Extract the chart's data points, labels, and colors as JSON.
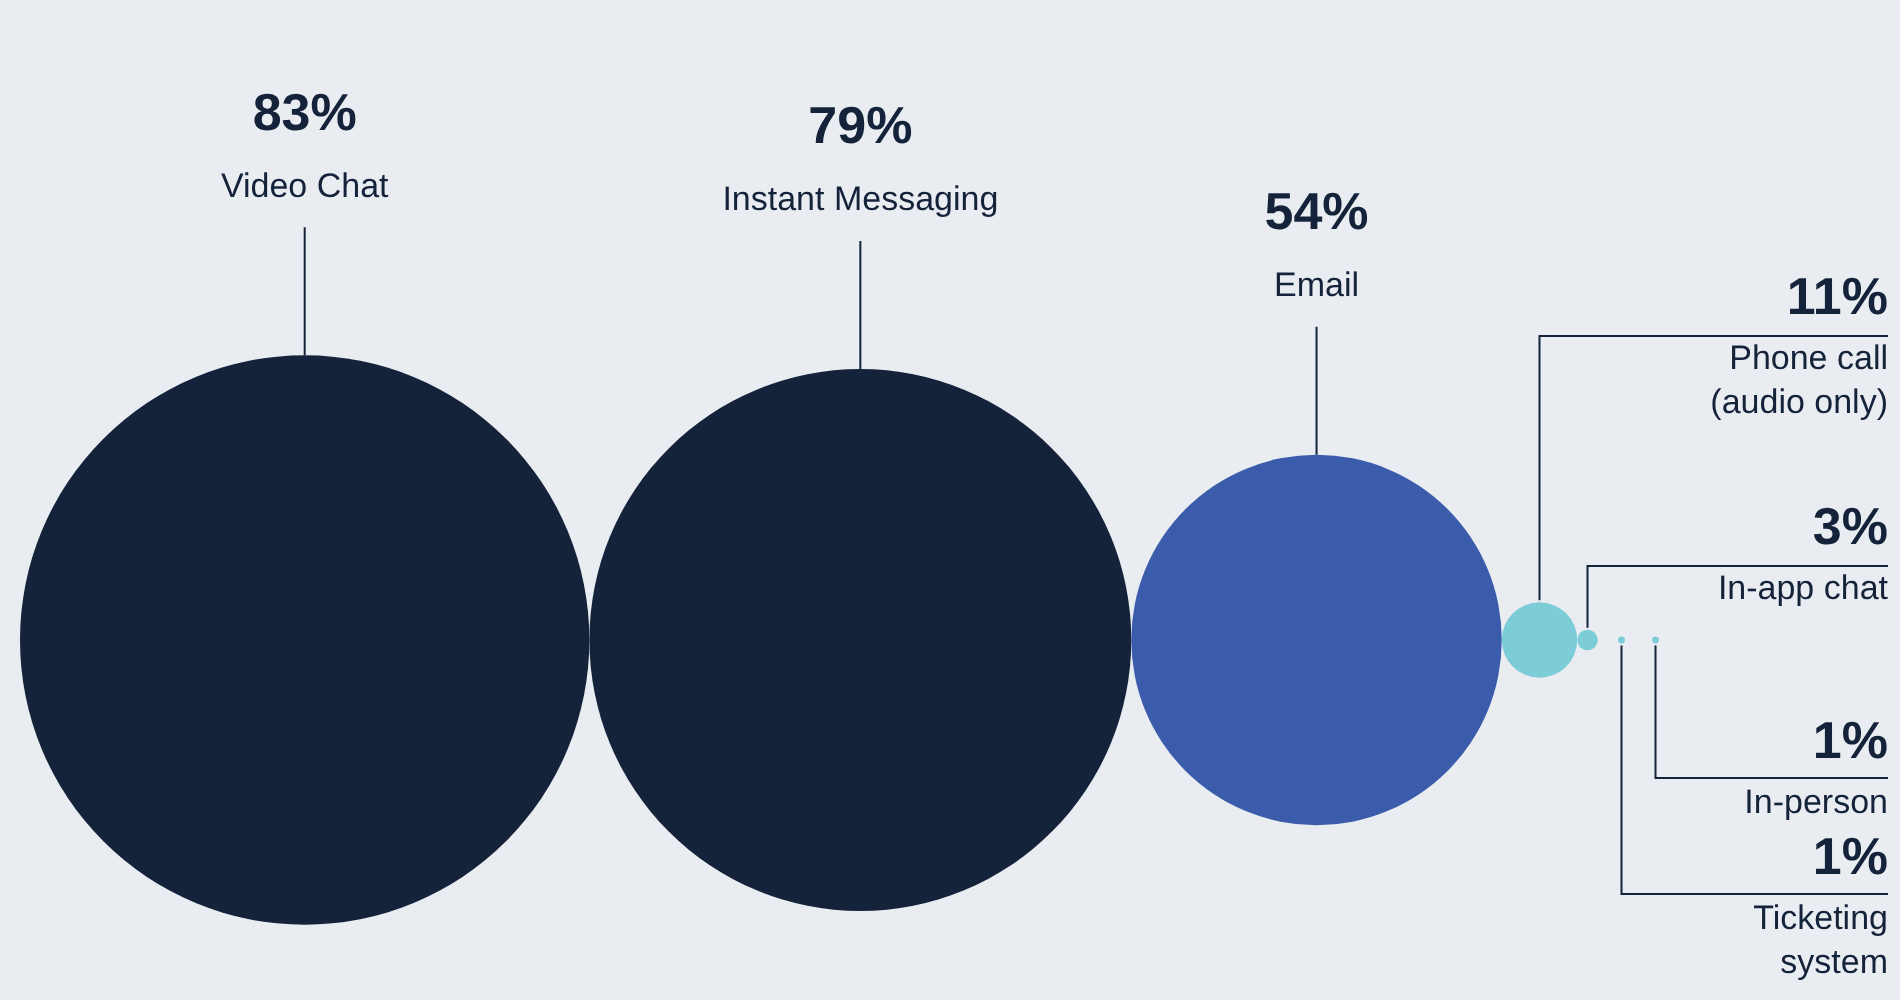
{
  "chart_data": {
    "type": "other",
    "categories": [
      "Video Chat",
      "Instant Messaging",
      "Email",
      "Phone call (audio only)",
      "In-app chat",
      "Ticketing system",
      "In-person"
    ],
    "values": [
      83,
      79,
      54,
      11,
      3,
      1,
      1
    ],
    "value_labels": [
      "83%",
      "79%",
      "54%",
      "11%",
      "3%",
      "1%",
      "1%"
    ],
    "colors": [
      "#14233a",
      "#14233a",
      "#3a5cab",
      "#7dcdd8",
      "#7dcdd8",
      "#7dcdd8",
      "#7dcdd8"
    ]
  }
}
